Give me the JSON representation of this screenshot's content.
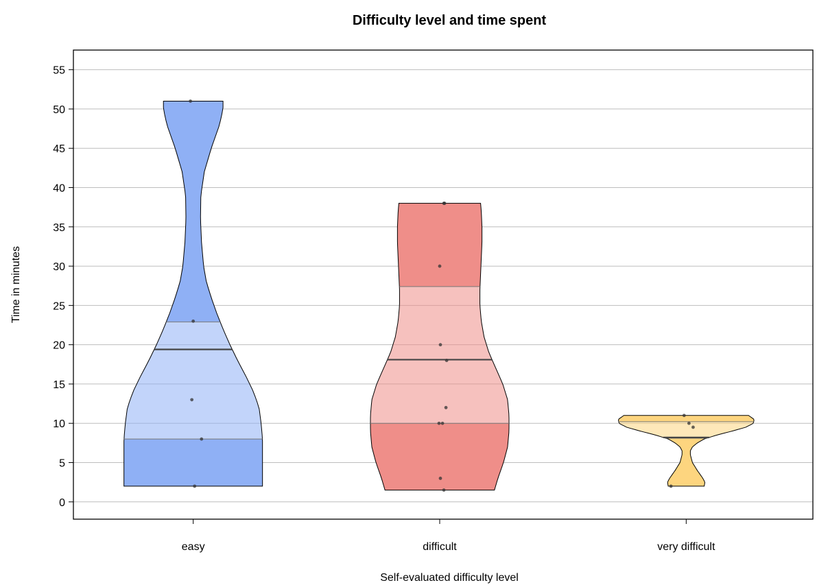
{
  "chart_data": {
    "type": "violin",
    "title": "Difficulty level and time spent",
    "xlabel": "Self-evaluated difficulty level",
    "ylabel": "Time in minutes",
    "ylim": [
      -2.2,
      57.5
    ],
    "yticks": [
      0,
      5,
      10,
      15,
      20,
      25,
      30,
      35,
      40,
      45,
      50,
      55
    ],
    "grid": "horizontal",
    "categories": [
      "easy",
      "difficult",
      "very difficult"
    ],
    "colors": [
      "#8fb0f5",
      "#ef8e89",
      "#fdd57f"
    ],
    "series": [
      {
        "name": "easy",
        "color": "#8fb0f5",
        "min": 2,
        "max": 51,
        "q1": 8,
        "median": 19.4,
        "q3": 22.9,
        "points": [
          {
            "y": 51,
            "dx": -0.04
          },
          {
            "y": 23,
            "dx": 0.0
          },
          {
            "y": 13,
            "dx": -0.02
          },
          {
            "y": 8,
            "dx": 0.12
          },
          {
            "y": 2,
            "dx": 0.02
          }
        ],
        "density": [
          [
            2,
            1.0
          ],
          [
            5,
            1.0
          ],
          [
            8,
            1.0
          ],
          [
            10,
            0.98
          ],
          [
            12,
            0.95
          ],
          [
            14,
            0.87
          ],
          [
            16,
            0.76
          ],
          [
            18,
            0.64
          ],
          [
            20,
            0.53
          ],
          [
            22,
            0.43
          ],
          [
            24,
            0.34
          ],
          [
            26,
            0.26
          ],
          [
            28,
            0.19
          ],
          [
            30,
            0.15
          ],
          [
            33,
            0.12
          ],
          [
            36,
            0.105
          ],
          [
            39,
            0.11
          ],
          [
            42,
            0.16
          ],
          [
            45,
            0.26
          ],
          [
            48,
            0.38
          ],
          [
            50,
            0.43
          ],
          [
            51,
            0.43
          ]
        ]
      },
      {
        "name": "difficult",
        "color": "#ef8e89",
        "min": 1.5,
        "max": 38,
        "q1": 10,
        "median": 18.1,
        "q3": 27.4,
        "points": [
          {
            "y": 38,
            "dx": 0.06
          },
          {
            "y": 38,
            "dx": 0.07
          },
          {
            "y": 30,
            "dx": 0.0
          },
          {
            "y": 20,
            "dx": 0.01
          },
          {
            "y": 18,
            "dx": 0.1
          },
          {
            "y": 12,
            "dx": 0.09
          },
          {
            "y": 10,
            "dx": -0.01
          },
          {
            "y": 10,
            "dx": 0.04
          },
          {
            "y": 3,
            "dx": 0.01
          },
          {
            "y": 1.5,
            "dx": 0.06
          }
        ],
        "density": [
          [
            1.5,
            0.79
          ],
          [
            3,
            0.84
          ],
          [
            5,
            0.92
          ],
          [
            7,
            0.98
          ],
          [
            9,
            1.0
          ],
          [
            11,
            1.0
          ],
          [
            13,
            0.98
          ],
          [
            15,
            0.91
          ],
          [
            17,
            0.81
          ],
          [
            19,
            0.71
          ],
          [
            21,
            0.64
          ],
          [
            23,
            0.6
          ],
          [
            25,
            0.58
          ],
          [
            27,
            0.58
          ],
          [
            29,
            0.59
          ],
          [
            31,
            0.6
          ],
          [
            33,
            0.61
          ],
          [
            35,
            0.61
          ],
          [
            37,
            0.6
          ],
          [
            38,
            0.59
          ]
        ]
      },
      {
        "name": "very difficult",
        "color": "#fdd57f",
        "min": 2,
        "max": 11,
        "q1": 8.1,
        "median": 8.2,
        "q3": 10.2,
        "points": [
          {
            "y": 11,
            "dx": -0.03
          },
          {
            "y": 10,
            "dx": 0.04
          },
          {
            "y": 9.5,
            "dx": 0.1
          },
          {
            "y": 2,
            "dx": -0.22
          }
        ],
        "density": [
          [
            2,
            0.26
          ],
          [
            2.5,
            0.27
          ],
          [
            3,
            0.24
          ],
          [
            4,
            0.16
          ],
          [
            5,
            0.09
          ],
          [
            6,
            0.06
          ],
          [
            6.5,
            0.06
          ],
          [
            7,
            0.09
          ],
          [
            7.5,
            0.16
          ],
          [
            8,
            0.26
          ],
          [
            8.5,
            0.44
          ],
          [
            9,
            0.66
          ],
          [
            9.5,
            0.86
          ],
          [
            10,
            0.97
          ],
          [
            10.5,
            0.98
          ],
          [
            11,
            0.9
          ]
        ]
      }
    ]
  }
}
